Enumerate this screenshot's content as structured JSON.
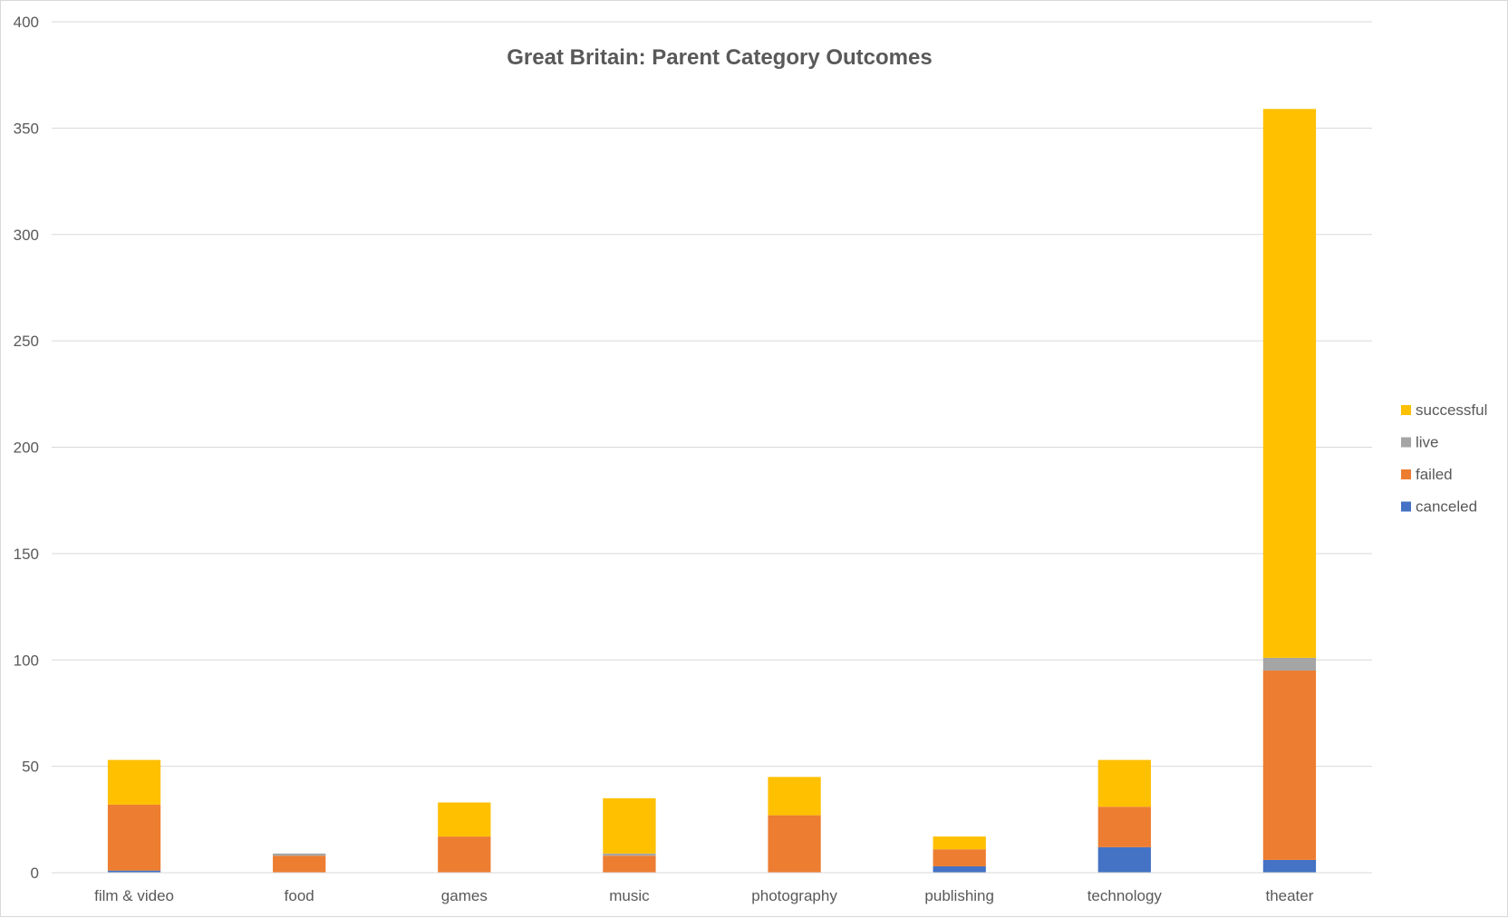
{
  "chart_data": {
    "type": "bar",
    "stacked": true,
    "title": "Great Britain: Parent Category Outcomes",
    "xlabel": "",
    "ylabel": "",
    "ylim": [
      0,
      400
    ],
    "yticks": [
      "0",
      "50",
      "100",
      "150",
      "200",
      "250",
      "300",
      "350",
      "400"
    ],
    "grid": true,
    "legend_position": "right",
    "categories": [
      "film & video",
      "food",
      "games",
      "music",
      "photography",
      "publishing",
      "technology",
      "theater"
    ],
    "series": [
      {
        "name": "canceled",
        "color": "#4472C4",
        "values": [
          1,
          0,
          0,
          0,
          0,
          3,
          12,
          6
        ]
      },
      {
        "name": "failed",
        "color": "#ED7D31",
        "values": [
          31,
          8,
          17,
          8,
          27,
          8,
          19,
          89
        ]
      },
      {
        "name": "live",
        "color": "#A5A5A5",
        "values": [
          0,
          1,
          0,
          1,
          0,
          0,
          0,
          6
        ]
      },
      {
        "name": "successful",
        "color": "#FFC000",
        "values": [
          21,
          0,
          16,
          26,
          18,
          6,
          22,
          258
        ]
      }
    ],
    "legend_order": [
      "successful",
      "live",
      "failed",
      "canceled"
    ]
  }
}
